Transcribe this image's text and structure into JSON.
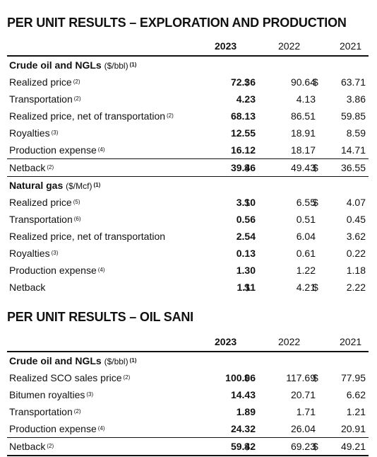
{
  "ep": {
    "title": "PER UNIT RESULTS – EXPLORATION AND PRODUCTION",
    "years": [
      "2023",
      "2022",
      "2021"
    ],
    "crude": {
      "heading": "Crude oil and NGLs",
      "unit": "($/bbl)",
      "note": "(1)",
      "rows": [
        {
          "label": "Realized price",
          "note": "(2)",
          "v2023": "72.36",
          "d2023": "$",
          "v2022": "90.64",
          "d2022": "$",
          "v2021": "63.71"
        },
        {
          "label": "Transportation",
          "note": "(2)",
          "v2023": "4.23",
          "v2022": "4.13",
          "v2021": "3.86"
        },
        {
          "label": "Realized price, net of transportation",
          "note": "(2)",
          "v2023": "68.13",
          "v2022": "86.51",
          "v2021": "59.85"
        },
        {
          "label": "Royalties",
          "note": "(3)",
          "v2023": "12.55",
          "v2022": "18.91",
          "v2021": "8.59"
        },
        {
          "label": "Production expense",
          "note": "(4)",
          "v2023": "16.12",
          "v2022": "18.17",
          "v2021": "14.71"
        },
        {
          "label": "Netback",
          "note": "(2)",
          "v2023": "39.46",
          "d2023": "$",
          "v2022": "49.43",
          "d2022": "$",
          "v2021": "36.55"
        }
      ]
    },
    "gas": {
      "heading": "Natural gas",
      "unit": "($/Mcf)",
      "note": "(1)",
      "rows": [
        {
          "label": "Realized price",
          "note": "(5)",
          "v2023": "3.10",
          "d2023": "$",
          "v2022": "6.55",
          "d2022": "$",
          "v2021": "4.07"
        },
        {
          "label": "Transportation",
          "note": "(6)",
          "v2023": "0.56",
          "v2022": "0.51",
          "v2021": "0.45"
        },
        {
          "label": "Realized price, net of transportation",
          "note": "",
          "v2023": "2.54",
          "v2022": "6.04",
          "v2021": "3.62"
        },
        {
          "label": "Royalties",
          "note": "(3)",
          "v2023": "0.13",
          "v2022": "0.61",
          "v2021": "0.22"
        },
        {
          "label": "Production expense",
          "note": "(4)",
          "v2023": "1.30",
          "v2022": "1.22",
          "v2021": "1.18"
        },
        {
          "label": "Netback",
          "note": "",
          "v2023": "1.11",
          "d2023": "$",
          "v2022": "4.21",
          "d2022": "$",
          "v2021": "2.22"
        }
      ]
    }
  },
  "os": {
    "title": "PER UNIT RESULTS – OIL SANI",
    "years": [
      "2023",
      "2022",
      "2021"
    ],
    "crude": {
      "heading": "Crude oil and NGLs",
      "unit": "($/bbl)",
      "note": "(1)",
      "rows": [
        {
          "label": "Realized SCO sales price",
          "note": "(2)",
          "v2023": "100.06",
          "d2023": "$",
          "v2022": "117.69",
          "d2022": "$",
          "v2021": "77.95"
        },
        {
          "label": "Bitumen royalties",
          "note": "(3)",
          "v2023": "14.43",
          "v2022": "20.71",
          "v2021": "6.62"
        },
        {
          "label": "Transportation",
          "note": "(2)",
          "v2023": "1.89",
          "v2022": "1.71",
          "v2021": "1.21"
        },
        {
          "label": "Production expense",
          "note": "(4)",
          "v2023": "24.32",
          "v2022": "26.04",
          "v2021": "20.91"
        },
        {
          "label": "Netback",
          "note": "(2)",
          "v2023": "59.42",
          "d2023": "$",
          "v2022": "69.23",
          "d2022": "$",
          "v2021": "49.21"
        }
      ]
    }
  }
}
